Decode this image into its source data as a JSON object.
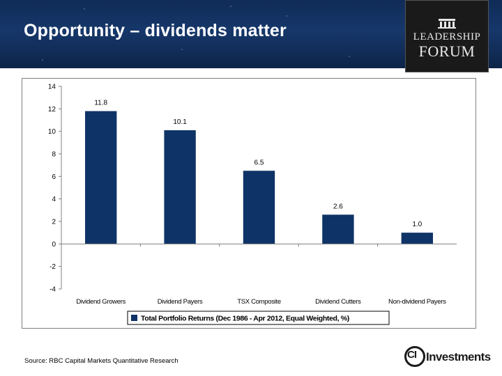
{
  "header": {
    "title": "Opportunity – dividends matter",
    "logo_line1": "LEADERSHIP",
    "logo_line2": "FORUM",
    "background": "#16376a"
  },
  "footer": {
    "source": "Source: RBC Capital Markets Quantitative Research",
    "brand_prefix": "CI",
    "brand_word": "Investments"
  },
  "chart_data": {
    "type": "bar",
    "categories": [
      "Dividend Growers",
      "Dividend Payers",
      "TSX Composite",
      "Dividend Cutters",
      "Non-dividend Payers"
    ],
    "series": [
      {
        "name": "Total Portfolio Returns (Dec 1986 - Apr 2012, Equal Weighted, %)",
        "values": [
          11.8,
          10.1,
          6.5,
          2.6,
          1.0
        ],
        "labels": [
          "11.8",
          "10.1",
          "6.5",
          "2.6",
          "1.0"
        ],
        "color": "#0e3366"
      }
    ],
    "ylim": [
      -4,
      14
    ],
    "yticks": [
      -4,
      -2,
      0,
      2,
      4,
      6,
      8,
      10,
      12,
      14
    ],
    "grid": false,
    "legend": "bottom"
  }
}
